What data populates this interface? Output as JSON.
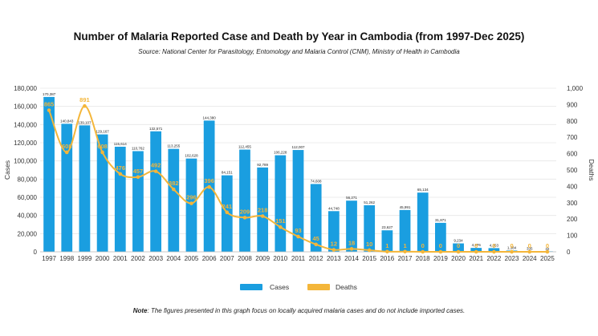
{
  "chart_data": {
    "type": "bar",
    "title": "Number of Malaria Reported Case and Death by Year in Cambodia (from 1997-Dec 2025)",
    "subtitle": "Source: National Center for Parasitology, Entomology and Malaria Control (CNM), Ministry of Health in Cambodia",
    "note_label": "Note",
    "note_text": ": The figures presented in this graph focus on locally acquired malaria cases and do not include imported cases.",
    "categories": [
      "1997",
      "1998",
      "1999",
      "2000",
      "2001",
      "2002",
      "2003",
      "2004",
      "2005",
      "2006",
      "2007",
      "2008",
      "2009",
      "2010",
      "2011",
      "2012",
      "2013",
      "2014",
      "2015",
      "2016",
      "2017",
      "2018",
      "2019",
      "2020",
      "2021",
      "2022",
      "2023",
      "2024",
      "2025"
    ],
    "series": [
      {
        "name": "Cases",
        "type": "bar",
        "color": "#1a9ee0",
        "axis": "left",
        "values": [
          170387,
          140843,
          139107,
          129167,
          115614,
          110762,
          132571,
          113255,
          102628,
          144380,
          84151,
          112455,
          92789,
          106228,
          112007,
          74608,
          44748,
          56271,
          51262,
          23627,
          45991,
          65134,
          31871,
          9234,
          4276,
          4053,
          1384,
          335,
          32
        ],
        "labels": [
          "170,387",
          "140,843",
          "139,107",
          "129,167",
          "115,614",
          "110,762",
          "132,571",
          "113,255",
          "102,628",
          "144,380",
          "84,151",
          "112,455",
          "92,789",
          "106,228",
          "112,007",
          "74,608",
          "44,748",
          "56,271",
          "51,262",
          "23,627",
          "45,991",
          "65,134",
          "31,871",
          "9,234",
          "4,276",
          "4,053",
          "1,384",
          "335",
          "32"
        ]
      },
      {
        "name": "Deaths",
        "type": "line",
        "color": "#f4b63a",
        "axis": "right",
        "values": [
          865,
          608,
          891,
          608,
          476,
          457,
          492,
          382,
          296,
          396,
          241,
          209,
          218,
          151,
          93,
          45,
          12,
          18,
          10,
          1,
          1,
          0,
          0,
          0,
          0,
          0,
          0,
          0,
          0
        ]
      }
    ],
    "y_left": {
      "label": "Cases",
      "min": 0,
      "max": 180000,
      "ticks": [
        "0",
        "20,000",
        "40,000",
        "60,000",
        "80,000",
        "100,000",
        "120,000",
        "140,000",
        "160,000",
        "180,000"
      ]
    },
    "y_right": {
      "label": "Deaths",
      "min": 0,
      "max": 1000,
      "ticks": [
        "0",
        "100",
        "200",
        "300",
        "400",
        "500",
        "600",
        "700",
        "800",
        "900",
        "1,000"
      ]
    },
    "grid": true,
    "legend_position": "bottom"
  }
}
